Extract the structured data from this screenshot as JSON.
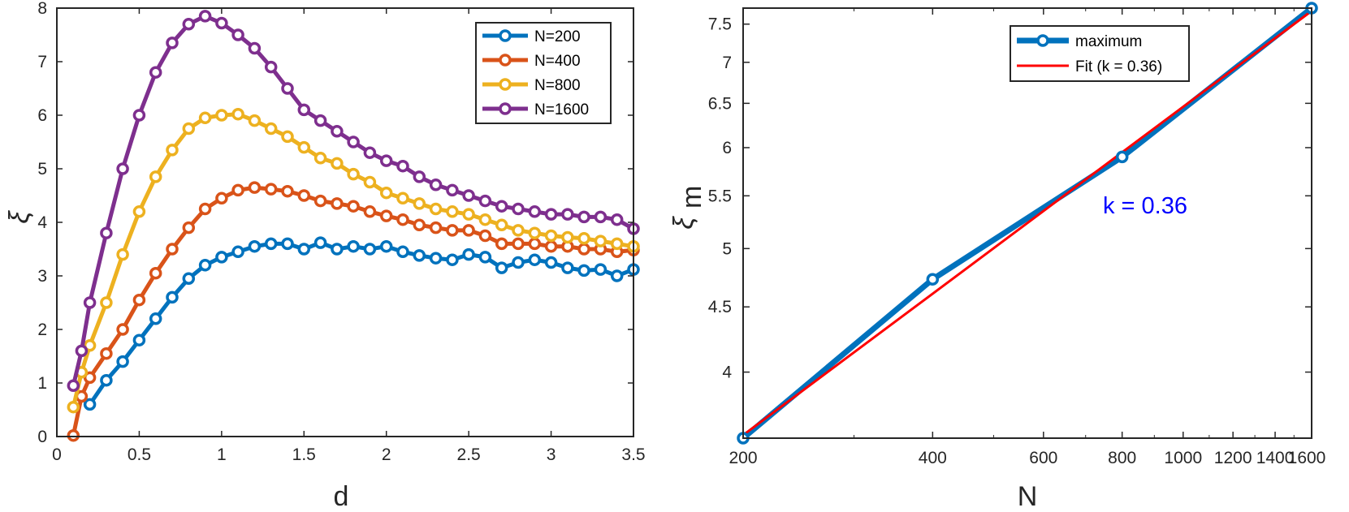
{
  "chart_data": [
    {
      "type": "line",
      "xlabel": "d",
      "ylabel": "ξ",
      "xlim": [
        0,
        3.5
      ],
      "ylim": [
        0,
        8
      ],
      "xticks": [
        0,
        0.5,
        1,
        1.5,
        2,
        2.5,
        3,
        3.5
      ],
      "xtick_labels": [
        "0",
        "0.5",
        "1",
        "1.5",
        "2",
        "2.5",
        "3",
        "3.5"
      ],
      "yticks": [
        0,
        1,
        2,
        3,
        4,
        5,
        6,
        7,
        8
      ],
      "ytick_labels": [
        "0",
        "1",
        "2",
        "3",
        "4",
        "5",
        "6",
        "7",
        "8"
      ],
      "legend_position": "top-right",
      "x": [
        0.1,
        0.15,
        0.2,
        0.3,
        0.4,
        0.5,
        0.6,
        0.7,
        0.8,
        0.9,
        1.0,
        1.1,
        1.2,
        1.3,
        1.4,
        1.5,
        1.6,
        1.7,
        1.8,
        1.9,
        2.0,
        2.1,
        2.2,
        2.3,
        2.4,
        2.5,
        2.6,
        2.7,
        2.8,
        2.9,
        3.0,
        3.1,
        3.2,
        3.3,
        3.4,
        3.5
      ],
      "series": [
        {
          "name": "N=200",
          "color": "#0072BD",
          "values": [
            null,
            null,
            0.6,
            1.05,
            1.4,
            1.8,
            2.2,
            2.6,
            2.95,
            3.2,
            3.35,
            3.45,
            3.55,
            3.6,
            3.6,
            3.5,
            3.62,
            3.5,
            3.55,
            3.5,
            3.55,
            3.45,
            3.38,
            3.33,
            3.3,
            3.4,
            3.35,
            3.15,
            3.25,
            3.3,
            3.25,
            3.15,
            3.1,
            3.12,
            3.0,
            3.12
          ]
        },
        {
          "name": "N=400",
          "color": "#D95319",
          "values": [
            0.02,
            0.75,
            1.1,
            1.55,
            2.0,
            2.55,
            3.05,
            3.5,
            3.9,
            4.25,
            4.45,
            4.6,
            4.65,
            4.62,
            4.58,
            4.5,
            4.4,
            4.35,
            4.3,
            4.2,
            4.12,
            4.05,
            3.95,
            3.9,
            3.85,
            3.85,
            3.75,
            3.6,
            3.6,
            3.6,
            3.55,
            3.55,
            3.5,
            3.5,
            3.45,
            3.48
          ]
        },
        {
          "name": "N=800",
          "color": "#EDB120",
          "values": [
            0.55,
            1.2,
            1.7,
            2.5,
            3.4,
            4.2,
            4.85,
            5.35,
            5.75,
            5.95,
            6.0,
            6.02,
            5.9,
            5.75,
            5.6,
            5.4,
            5.2,
            5.1,
            4.9,
            4.75,
            4.55,
            4.45,
            4.35,
            4.25,
            4.2,
            4.15,
            4.05,
            3.95,
            3.85,
            3.8,
            3.75,
            3.72,
            3.7,
            3.65,
            3.6,
            3.55
          ]
        },
        {
          "name": "N=1600",
          "color": "#7E2F8E",
          "values": [
            0.95,
            1.6,
            2.5,
            3.8,
            5.0,
            6.0,
            6.8,
            7.35,
            7.7,
            7.85,
            7.72,
            7.5,
            7.25,
            6.9,
            6.5,
            6.1,
            5.9,
            5.7,
            5.5,
            5.3,
            5.15,
            5.05,
            4.85,
            4.7,
            4.6,
            4.5,
            4.4,
            4.3,
            4.25,
            4.2,
            4.15,
            4.15,
            4.1,
            4.1,
            4.05,
            3.88
          ]
        }
      ]
    },
    {
      "type": "line",
      "xscale": "log",
      "yscale": "log",
      "xlabel": "N",
      "ylabel": "ξ",
      "ylabel_subscript": "m",
      "xlim": [
        200,
        1600
      ],
      "ylim": [
        3.55,
        7.72
      ],
      "xticks": [
        200,
        400,
        600,
        800,
        1000,
        1200,
        1400,
        1600
      ],
      "xtick_labels": [
        "200",
        "400",
        "600",
        "800",
        "1000",
        "1200",
        "1400",
        "1600"
      ],
      "yticks": [
        4,
        4.5,
        5,
        5.5,
        6,
        6.5,
        7,
        7.5
      ],
      "ytick_labels": [
        "4",
        "4.5",
        "5",
        "5.5",
        "6",
        "6.5",
        "7",
        "7.5"
      ],
      "legend_position": "top-right",
      "series": [
        {
          "name": "maximum",
          "color": "#0072BD",
          "x": [
            200,
            400,
            800,
            1600
          ],
          "values": [
            3.55,
            4.73,
            5.9,
            7.72
          ]
        },
        {
          "name": "Fit (k = 0.36)",
          "color": "#FF0000",
          "x": [
            200,
            1600
          ],
          "values": [
            3.57,
            7.68
          ]
        }
      ],
      "annotation": {
        "text": "k = 0.36",
        "color": "#0000FF",
        "x": 800,
        "y": 5.6
      }
    }
  ]
}
